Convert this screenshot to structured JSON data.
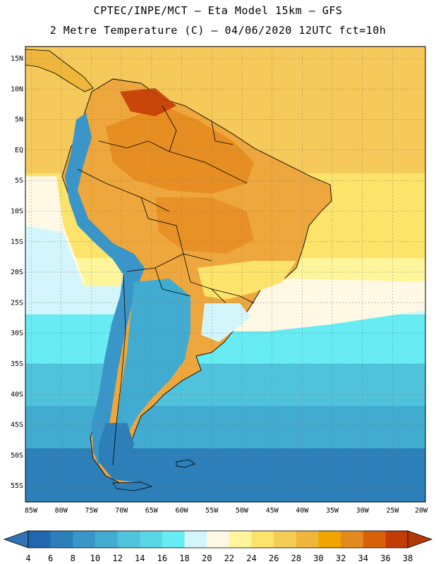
{
  "header": {
    "line1": "CPTEC/INPE/MCT –  Eta Model 15km – GFS",
    "line2": "2 Metre Temperature (C) – 04/06/2020 12UTC fct=10h"
  },
  "axes": {
    "lat_labels": [
      "15N",
      "10N",
      "5N",
      "EQ",
      "5S",
      "10S",
      "15S",
      "20S",
      "25S",
      "30S",
      "35S",
      "40S",
      "45S",
      "50S",
      "55S"
    ],
    "lon_labels": [
      "85W",
      "80W",
      "75W",
      "70W",
      "65W",
      "60W",
      "55W",
      "50W",
      "45W",
      "40W",
      "35W",
      "30W",
      "25W",
      "20W"
    ]
  },
  "colorbar": {
    "labels": [
      "4",
      "6",
      "8",
      "10",
      "12",
      "14",
      "16",
      "18",
      "20",
      "22",
      "24",
      "26",
      "28",
      "30",
      "32",
      "34",
      "36",
      "38"
    ],
    "colors": [
      "#2166b0",
      "#2c7fb8",
      "#3a96c8",
      "#41abd0",
      "#4fc3db",
      "#5ad6e6",
      "#66ecf2",
      "#d2f6fb",
      "#fff8e4",
      "#fff59b",
      "#fce36a",
      "#f5cc55",
      "#eeb73c",
      "#f0a500",
      "#e58a1f",
      "#d8620c",
      "#c43c05"
    ],
    "low_color": "#3072b4",
    "high_color": "#b43a05"
  },
  "colors": {
    "ocean_tropic": "#f5c95a",
    "ocean_mid": "#fff8e4",
    "ocean_cold": "#4fc3db",
    "continent_hot": "#eea73c",
    "andes_cold": "#3a96c8",
    "patagonia": "#2c7fb8"
  }
}
